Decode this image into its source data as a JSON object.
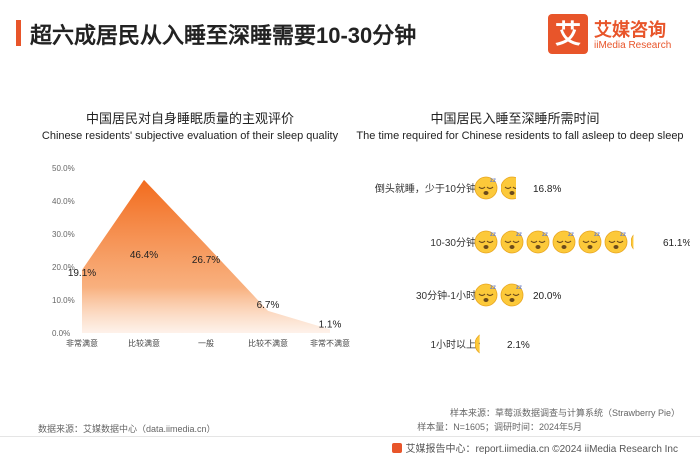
{
  "header": {
    "title": "超六成居民从入睡至深睡需要10-30分钟",
    "logo_mark": "艾",
    "logo_cn": "艾媒咨询",
    "logo_en": "iiMedia Research",
    "accent_color": "#e8552a"
  },
  "chart_data": [
    {
      "type": "area",
      "title": "中国居民对自身睡眠质量的主观评价",
      "subtitle": "Chinese residents' subjective evaluation of their sleep quality",
      "categories": [
        "非常满意",
        "比较满意",
        "一般",
        "比较不满意",
        "非常不满意"
      ],
      "values": [
        19.1,
        46.4,
        26.7,
        6.7,
        1.1
      ],
      "value_labels": [
        "19.1%",
        "46.4%",
        "26.7%",
        "6.7%",
        "1.1%"
      ],
      "y_ticks": [
        "0.0%",
        "10.0%",
        "20.0%",
        "30.0%",
        "40.0%",
        "50.0%"
      ],
      "ylim": [
        0,
        50
      ],
      "grid": false,
      "color": "#f26b1d"
    },
    {
      "type": "bar",
      "title": "中国居民入睡至深睡所需时间",
      "subtitle": "The time required for Chinese residents to fall asleep to deep sleep",
      "categories": [
        "倒头就睡，少于10分钟",
        "10-30分钟",
        "30分钟-1小时",
        "1小时以上"
      ],
      "values": [
        16.8,
        61.1,
        20.0,
        2.1
      ],
      "value_labels": [
        "16.8%",
        "61.1%",
        "20.0%",
        "2.1%"
      ],
      "unit_icon": "sleepy-face-emoji",
      "unit_value": 10
    }
  ],
  "footer": {
    "source": "数据来源：艾媒数据中心（data.iimedia.cn）",
    "sample_source": "样本来源：草莓派数据调查与计算系统（Strawberry Pie）",
    "sample_size": "样本量：N=1605；调研时间：2024年5月",
    "copyright": "艾媒报告中心：report.iimedia.cn  ©2024  iiMedia Research Inc"
  }
}
